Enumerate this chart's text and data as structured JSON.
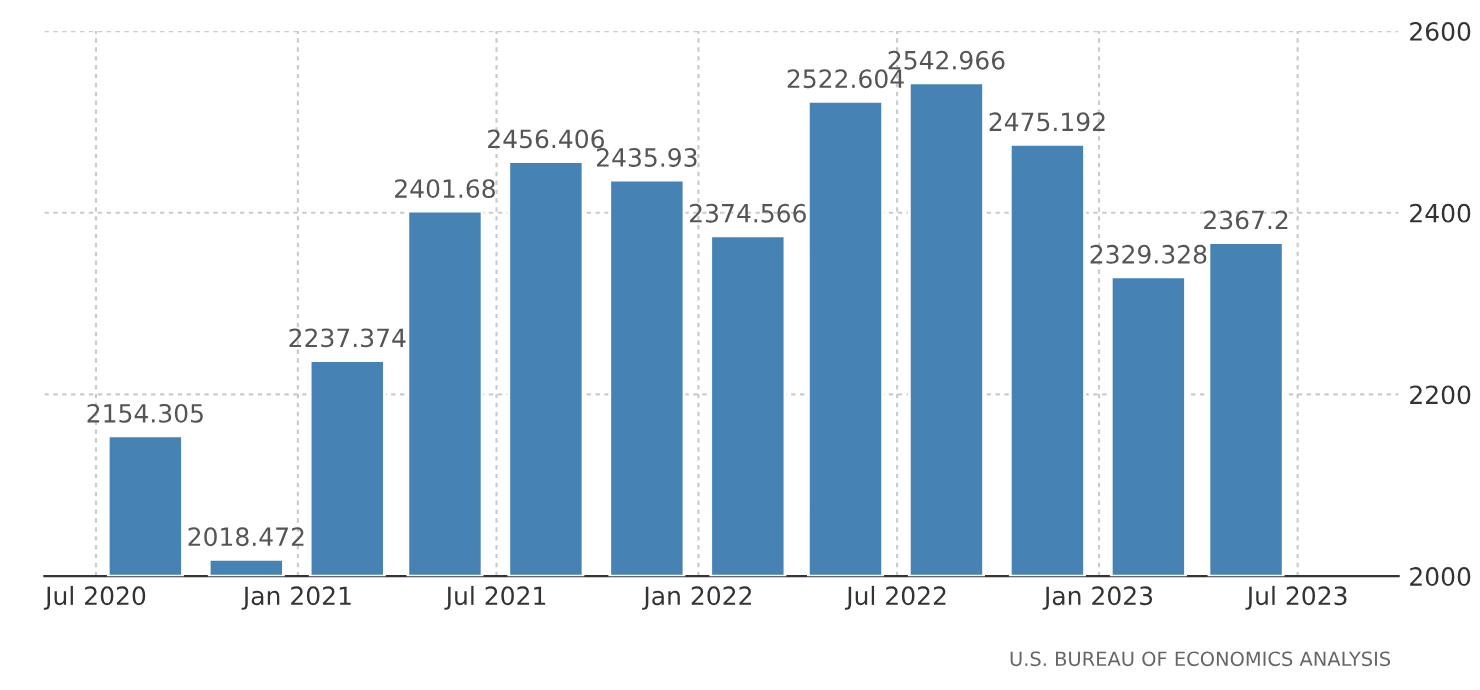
{
  "chart_data": {
    "type": "bar",
    "x": [
      "2020-08-15",
      "2020-11-15",
      "2021-02-15",
      "2021-05-15",
      "2021-08-15",
      "2021-11-15",
      "2022-02-15",
      "2022-05-15",
      "2022-08-15",
      "2022-11-15",
      "2023-02-15",
      "2023-05-15"
    ],
    "values": [
      2154.305,
      2018.472,
      2237.374,
      2401.68,
      2456.406,
      2435.93,
      2374.566,
      2522.604,
      2542.966,
      2475.192,
      2329.328,
      2367.2
    ],
    "color": "#4682b4",
    "data_labels": true,
    "xlim": [
      "2020-05-15",
      "2023-10-01"
    ],
    "xticks": [
      {
        "value": "2020-07-01",
        "label": "Jul 2020"
      },
      {
        "value": "2021-01-01",
        "label": "Jan 2021"
      },
      {
        "value": "2021-07-01",
        "label": "Jul 2021"
      },
      {
        "value": "2022-01-01",
        "label": "Jan 2022"
      },
      {
        "value": "2022-07-01",
        "label": "Jul 2022"
      },
      {
        "value": "2023-01-01",
        "label": "Jan 2023"
      },
      {
        "value": "2023-07-01",
        "label": "Jul 2023"
      }
    ],
    "ylim": [
      2000,
      2600
    ],
    "yticks": [
      2000,
      2200,
      2400,
      2600
    ],
    "grid": true,
    "annotations": [
      "U.S. BUREAU OF ECONOMICS ANALYSIS"
    ]
  }
}
